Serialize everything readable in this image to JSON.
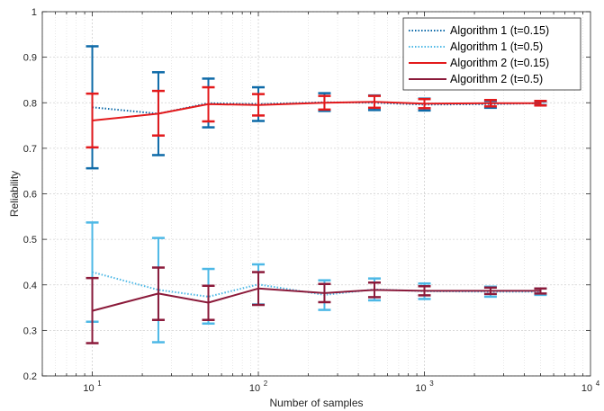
{
  "chart_data": {
    "type": "line",
    "title": "",
    "xlabel": "Number of samples",
    "ylabel": "Reliability",
    "xscale": "log",
    "xlim": [
      5,
      10000
    ],
    "ylim": [
      0.2,
      1.0
    ],
    "yticks": [
      0.2,
      0.3,
      0.4,
      0.5,
      0.6,
      0.7,
      0.8,
      0.9,
      1.0
    ],
    "ytick_labels": [
      "0.2",
      "0.3",
      "0.4",
      "0.5",
      "0.6",
      "0.7",
      "0.8",
      "0.9",
      "1"
    ],
    "xticks": [
      {
        "value": 10,
        "base": "10",
        "exp": "1"
      },
      {
        "value": 100,
        "base": "10",
        "exp": "2"
      },
      {
        "value": 1000,
        "base": "10",
        "exp": "3"
      },
      {
        "value": 10000,
        "base": "10",
        "exp": "4"
      }
    ],
    "grid": true,
    "legend_position": "top-right",
    "x": [
      10,
      25,
      50,
      100,
      250,
      500,
      1000,
      2500,
      5000
    ],
    "series": [
      {
        "name": "Algorithm 1 (t=0.15)",
        "color": "#0d6aa8",
        "style": "dotted",
        "values": [
          0.79,
          0.776,
          0.799,
          0.797,
          0.801,
          0.8,
          0.796,
          0.797,
          0.799
        ],
        "err_low": [
          0.656,
          0.685,
          0.746,
          0.76,
          0.782,
          0.784,
          0.783,
          0.789,
          0.795
        ],
        "err_high": [
          0.924,
          0.867,
          0.853,
          0.834,
          0.821,
          0.816,
          0.809,
          0.804,
          0.803
        ]
      },
      {
        "name": "Algorithm 1 (t=0.5)",
        "color": "#4db8e6",
        "style": "dotted",
        "values": [
          0.428,
          0.389,
          0.374,
          0.401,
          0.378,
          0.39,
          0.386,
          0.385,
          0.385
        ],
        "err_low": [
          0.319,
          0.274,
          0.315,
          0.357,
          0.345,
          0.366,
          0.369,
          0.374,
          0.378
        ],
        "err_high": [
          0.537,
          0.503,
          0.435,
          0.445,
          0.41,
          0.414,
          0.403,
          0.396,
          0.392
        ]
      },
      {
        "name": "Algorithm 2 (t=0.15)",
        "color": "#e31a1c",
        "style": "solid",
        "values": [
          0.761,
          0.776,
          0.797,
          0.795,
          0.8,
          0.802,
          0.798,
          0.799,
          0.799
        ],
        "err_low": [
          0.702,
          0.728,
          0.759,
          0.772,
          0.785,
          0.789,
          0.788,
          0.792,
          0.794
        ],
        "err_high": [
          0.82,
          0.826,
          0.834,
          0.819,
          0.815,
          0.815,
          0.808,
          0.806,
          0.804
        ]
      },
      {
        "name": "Algorithm 2 (t=0.5)",
        "color": "#8b1a3a",
        "style": "solid",
        "values": [
          0.343,
          0.381,
          0.361,
          0.392,
          0.382,
          0.389,
          0.387,
          0.387,
          0.387
        ],
        "err_low": [
          0.272,
          0.323,
          0.323,
          0.356,
          0.362,
          0.373,
          0.377,
          0.38,
          0.381
        ],
        "err_high": [
          0.415,
          0.438,
          0.398,
          0.428,
          0.402,
          0.405,
          0.397,
          0.394,
          0.392
        ]
      }
    ]
  }
}
